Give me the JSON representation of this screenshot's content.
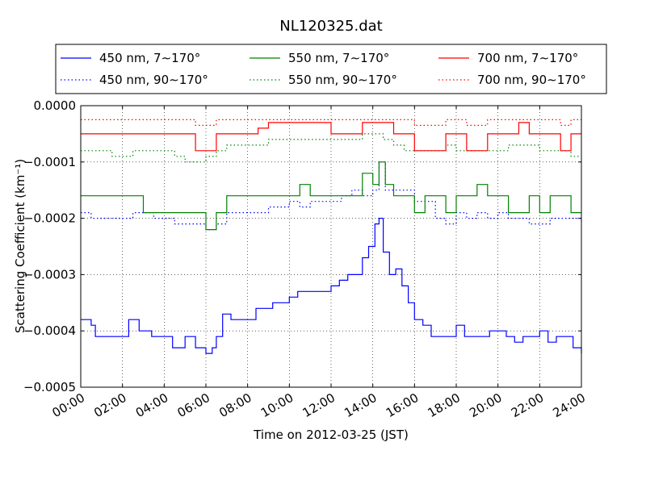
{
  "chart_data": {
    "type": "line",
    "title": "NL120325.dat",
    "xlabel": "Time on 2012-03-25 (JST)",
    "ylabel": "Scattering Coefficient (km⁻¹)",
    "xlim": [
      0,
      24
    ],
    "ylim": [
      -0.0005,
      0.0
    ],
    "xticks": [
      0,
      2,
      4,
      6,
      8,
      10,
      12,
      14,
      16,
      18,
      20,
      22,
      24
    ],
    "xtick_labels": [
      "00:00",
      "02:00",
      "04:00",
      "06:00",
      "08:00",
      "10:00",
      "12:00",
      "14:00",
      "16:00",
      "18:00",
      "20:00",
      "22:00",
      "24:00"
    ],
    "yticks": [
      0.0,
      -0.0001,
      -0.0002,
      -0.0003,
      -0.0004,
      -0.0005
    ],
    "ytick_labels": [
      "0.0000",
      "−0.0001",
      "−0.0002",
      "−0.0003",
      "−0.0004",
      "−0.0005"
    ],
    "grid": true,
    "legend_position": "above-plot",
    "series": [
      {
        "name": "450 nm, 7∼170°",
        "color": "#0000ff",
        "style": "solid",
        "x": [
          0,
          0.5,
          0.7,
          1.0,
          1.9,
          2.3,
          2.8,
          3.4,
          3.8,
          4.1,
          4.4,
          4.7,
          5.0,
          5.5,
          6.0,
          6.3,
          6.5,
          6.8,
          7.2,
          7.6,
          8.0,
          8.4,
          8.8,
          9.2,
          9.6,
          10.0,
          10.4,
          10.8,
          11.2,
          11.6,
          12.0,
          12.4,
          12.8,
          13.2,
          13.5,
          13.8,
          14.1,
          14.3,
          14.5,
          14.8,
          15.1,
          15.4,
          15.7,
          16.0,
          16.4,
          16.8,
          17.2,
          17.6,
          18.0,
          18.4,
          18.8,
          19.2,
          19.6,
          20.0,
          20.4,
          20.8,
          21.2,
          21.6,
          22.0,
          22.4,
          22.8,
          23.2,
          23.6,
          24.0
        ],
        "y": [
          -0.00038,
          -0.00039,
          -0.00041,
          -0.00041,
          -0.00041,
          -0.00038,
          -0.0004,
          -0.00041,
          -0.00041,
          -0.00041,
          -0.00043,
          -0.00043,
          -0.00041,
          -0.00043,
          -0.00044,
          -0.00043,
          -0.00041,
          -0.00037,
          -0.00038,
          -0.00038,
          -0.00038,
          -0.00036,
          -0.00036,
          -0.00035,
          -0.00035,
          -0.00034,
          -0.00033,
          -0.00033,
          -0.00033,
          -0.00033,
          -0.00032,
          -0.00031,
          -0.0003,
          -0.0003,
          -0.00027,
          -0.00025,
          -0.00021,
          -0.0002,
          -0.00026,
          -0.0003,
          -0.00029,
          -0.00032,
          -0.00035,
          -0.00038,
          -0.00039,
          -0.00041,
          -0.00041,
          -0.00041,
          -0.00039,
          -0.00041,
          -0.00041,
          -0.00041,
          -0.0004,
          -0.0004,
          -0.00041,
          -0.00042,
          -0.00041,
          -0.00041,
          -0.0004,
          -0.00042,
          -0.00041,
          -0.00041,
          -0.00043,
          -0.00044
        ]
      },
      {
        "name": "450 nm, 90∼170°",
        "color": "#0000ff",
        "style": "dotted",
        "x": [
          0,
          0.5,
          1.0,
          1.5,
          2.0,
          2.5,
          3.0,
          3.5,
          4.0,
          4.5,
          5.0,
          5.5,
          6.0,
          6.5,
          7.0,
          7.5,
          8.0,
          8.5,
          9.0,
          9.5,
          10.0,
          10.5,
          11.0,
          11.5,
          12.0,
          12.5,
          13.0,
          13.5,
          14.0,
          14.3,
          14.6,
          15.0,
          15.5,
          16.0,
          16.5,
          17.0,
          17.5,
          18.0,
          18.5,
          19.0,
          19.5,
          20.0,
          20.5,
          21.0,
          21.5,
          22.0,
          22.5,
          23.0,
          23.5,
          24.0
        ],
        "y": [
          -0.00019,
          -0.0002,
          -0.0002,
          -0.0002,
          -0.0002,
          -0.00019,
          -0.00019,
          -0.0002,
          -0.0002,
          -0.00021,
          -0.00021,
          -0.00021,
          -0.00022,
          -0.00021,
          -0.00019,
          -0.00019,
          -0.00019,
          -0.00019,
          -0.00018,
          -0.00018,
          -0.00017,
          -0.00018,
          -0.00017,
          -0.00017,
          -0.00017,
          -0.00016,
          -0.00015,
          -0.00016,
          -0.00015,
          -0.0001,
          -0.00015,
          -0.00015,
          -0.00015,
          -0.00017,
          -0.00017,
          -0.0002,
          -0.00021,
          -0.00019,
          -0.0002,
          -0.00019,
          -0.0002,
          -0.00019,
          -0.0002,
          -0.0002,
          -0.00021,
          -0.00021,
          -0.0002,
          -0.0002,
          -0.0002,
          -0.00021
        ]
      },
      {
        "name": "550 nm, 7∼170°",
        "color": "#008000",
        "style": "solid",
        "x": [
          0,
          0.5,
          1.0,
          1.5,
          2.0,
          2.5,
          3.0,
          3.5,
          4.0,
          4.5,
          5.0,
          5.5,
          6.0,
          6.5,
          7.0,
          7.5,
          8.0,
          8.5,
          9.0,
          9.5,
          10.0,
          10.5,
          11.0,
          11.5,
          12.0,
          12.5,
          13.0,
          13.5,
          14.0,
          14.3,
          14.6,
          15.0,
          15.5,
          16.0,
          16.5,
          17.0,
          17.5,
          18.0,
          18.5,
          19.0,
          19.5,
          20.0,
          20.5,
          21.0,
          21.5,
          22.0,
          22.5,
          23.0,
          23.5,
          24.0
        ],
        "y": [
          -0.00016,
          -0.00016,
          -0.00016,
          -0.00016,
          -0.00016,
          -0.00016,
          -0.00019,
          -0.00019,
          -0.00019,
          -0.00019,
          -0.00019,
          -0.00019,
          -0.00022,
          -0.00019,
          -0.00016,
          -0.00016,
          -0.00016,
          -0.00016,
          -0.00016,
          -0.00016,
          -0.00016,
          -0.00014,
          -0.00016,
          -0.00016,
          -0.00016,
          -0.00016,
          -0.00016,
          -0.00012,
          -0.00014,
          -0.0001,
          -0.00014,
          -0.00016,
          -0.00016,
          -0.00019,
          -0.00016,
          -0.00016,
          -0.00019,
          -0.00016,
          -0.00016,
          -0.00014,
          -0.00016,
          -0.00016,
          -0.00019,
          -0.00019,
          -0.00016,
          -0.00019,
          -0.00016,
          -0.00016,
          -0.00019,
          -0.00019
        ]
      },
      {
        "name": "550 nm, 90∼170°",
        "color": "#008000",
        "style": "dotted",
        "x": [
          0,
          0.5,
          1.0,
          1.5,
          2.0,
          2.5,
          3.0,
          3.5,
          4.0,
          4.5,
          5.0,
          5.5,
          6.0,
          6.5,
          7.0,
          7.5,
          8.0,
          8.5,
          9.0,
          9.5,
          10.0,
          10.5,
          11.0,
          11.5,
          12.0,
          12.5,
          13.0,
          13.5,
          14.0,
          14.5,
          15.0,
          15.5,
          16.0,
          16.5,
          17.0,
          17.5,
          18.0,
          18.5,
          19.0,
          19.5,
          20.0,
          20.5,
          21.0,
          21.5,
          22.0,
          22.5,
          23.0,
          23.5,
          24.0
        ],
        "y": [
          -8e-05,
          -8e-05,
          -8e-05,
          -9e-05,
          -9e-05,
          -8e-05,
          -8e-05,
          -8e-05,
          -8e-05,
          -9e-05,
          -0.0001,
          -0.0001,
          -9e-05,
          -8e-05,
          -7e-05,
          -7e-05,
          -7e-05,
          -7e-05,
          -6e-05,
          -6e-05,
          -6e-05,
          -6e-05,
          -6e-05,
          -6e-05,
          -6e-05,
          -6e-05,
          -6e-05,
          -5e-05,
          -5e-05,
          -6e-05,
          -7e-05,
          -8e-05,
          -8e-05,
          -8e-05,
          -8e-05,
          -7e-05,
          -8e-05,
          -8e-05,
          -8e-05,
          -8e-05,
          -8e-05,
          -7e-05,
          -7e-05,
          -7e-05,
          -8e-05,
          -8e-05,
          -8e-05,
          -9e-05,
          -9e-05
        ]
      },
      {
        "name": "700 nm, 7∼170°",
        "color": "#ff0000",
        "style": "solid",
        "x": [
          0,
          0.5,
          1.0,
          1.5,
          2.0,
          2.5,
          3.0,
          3.5,
          4.0,
          4.5,
          5.0,
          5.5,
          6.0,
          6.5,
          7.0,
          7.5,
          8.0,
          8.5,
          9.0,
          9.5,
          10.0,
          10.5,
          11.0,
          11.5,
          12.0,
          12.5,
          13.0,
          13.5,
          14.0,
          14.5,
          15.0,
          15.5,
          16.0,
          16.5,
          17.0,
          17.5,
          18.0,
          18.5,
          19.0,
          19.5,
          20.0,
          20.5,
          21.0,
          21.5,
          22.0,
          22.5,
          23.0,
          23.5,
          24.0
        ],
        "y": [
          -5e-05,
          -5e-05,
          -5e-05,
          -5e-05,
          -5e-05,
          -5e-05,
          -5e-05,
          -5e-05,
          -5e-05,
          -5e-05,
          -5e-05,
          -8e-05,
          -8e-05,
          -5e-05,
          -5e-05,
          -5e-05,
          -5e-05,
          -4e-05,
          -3e-05,
          -3e-05,
          -3e-05,
          -3e-05,
          -3e-05,
          -3e-05,
          -5e-05,
          -5e-05,
          -5e-05,
          -3e-05,
          -3e-05,
          -3e-05,
          -5e-05,
          -5e-05,
          -8e-05,
          -8e-05,
          -8e-05,
          -5e-05,
          -5e-05,
          -8e-05,
          -8e-05,
          -5e-05,
          -5e-05,
          -5e-05,
          -3e-05,
          -5e-05,
          -5e-05,
          -5e-05,
          -8e-05,
          -5e-05,
          -5e-05
        ]
      },
      {
        "name": "700 nm, 90∼170°",
        "color": "#ff0000",
        "style": "dotted",
        "x": [
          0,
          0.5,
          1.0,
          1.5,
          2.0,
          2.5,
          3.0,
          3.5,
          4.0,
          4.5,
          5.0,
          5.5,
          6.0,
          6.5,
          7.0,
          7.5,
          8.0,
          8.5,
          9.0,
          9.5,
          10.0,
          10.5,
          11.0,
          11.5,
          12.0,
          12.5,
          13.0,
          13.5,
          14.0,
          14.5,
          15.0,
          15.5,
          16.0,
          16.5,
          17.0,
          17.5,
          18.0,
          18.5,
          19.0,
          19.5,
          20.0,
          20.5,
          21.0,
          21.5,
          22.0,
          22.5,
          23.0,
          23.5,
          24.0
        ],
        "y": [
          -2.5e-05,
          -2.5e-05,
          -2.5e-05,
          -2.5e-05,
          -2.5e-05,
          -2.5e-05,
          -2.5e-05,
          -2.5e-05,
          -2.5e-05,
          -2.5e-05,
          -2.5e-05,
          -3.5e-05,
          -3.5e-05,
          -2.5e-05,
          -2.5e-05,
          -2.5e-05,
          -2.5e-05,
          -2.5e-05,
          -2.5e-05,
          -2.5e-05,
          -2.5e-05,
          -2.5e-05,
          -2.5e-05,
          -2.5e-05,
          -2.5e-05,
          -2.5e-05,
          -2.5e-05,
          -2.5e-05,
          -2.5e-05,
          -2.5e-05,
          -2.5e-05,
          -2.5e-05,
          -3.5e-05,
          -3.5e-05,
          -3.5e-05,
          -2.5e-05,
          -2.5e-05,
          -3.5e-05,
          -3.5e-05,
          -2.5e-05,
          -2.5e-05,
          -2.5e-05,
          -2.5e-05,
          -2.5e-05,
          -2.5e-05,
          -2.5e-05,
          -3.5e-05,
          -2.5e-05,
          -2.5e-05
        ]
      }
    ]
  }
}
